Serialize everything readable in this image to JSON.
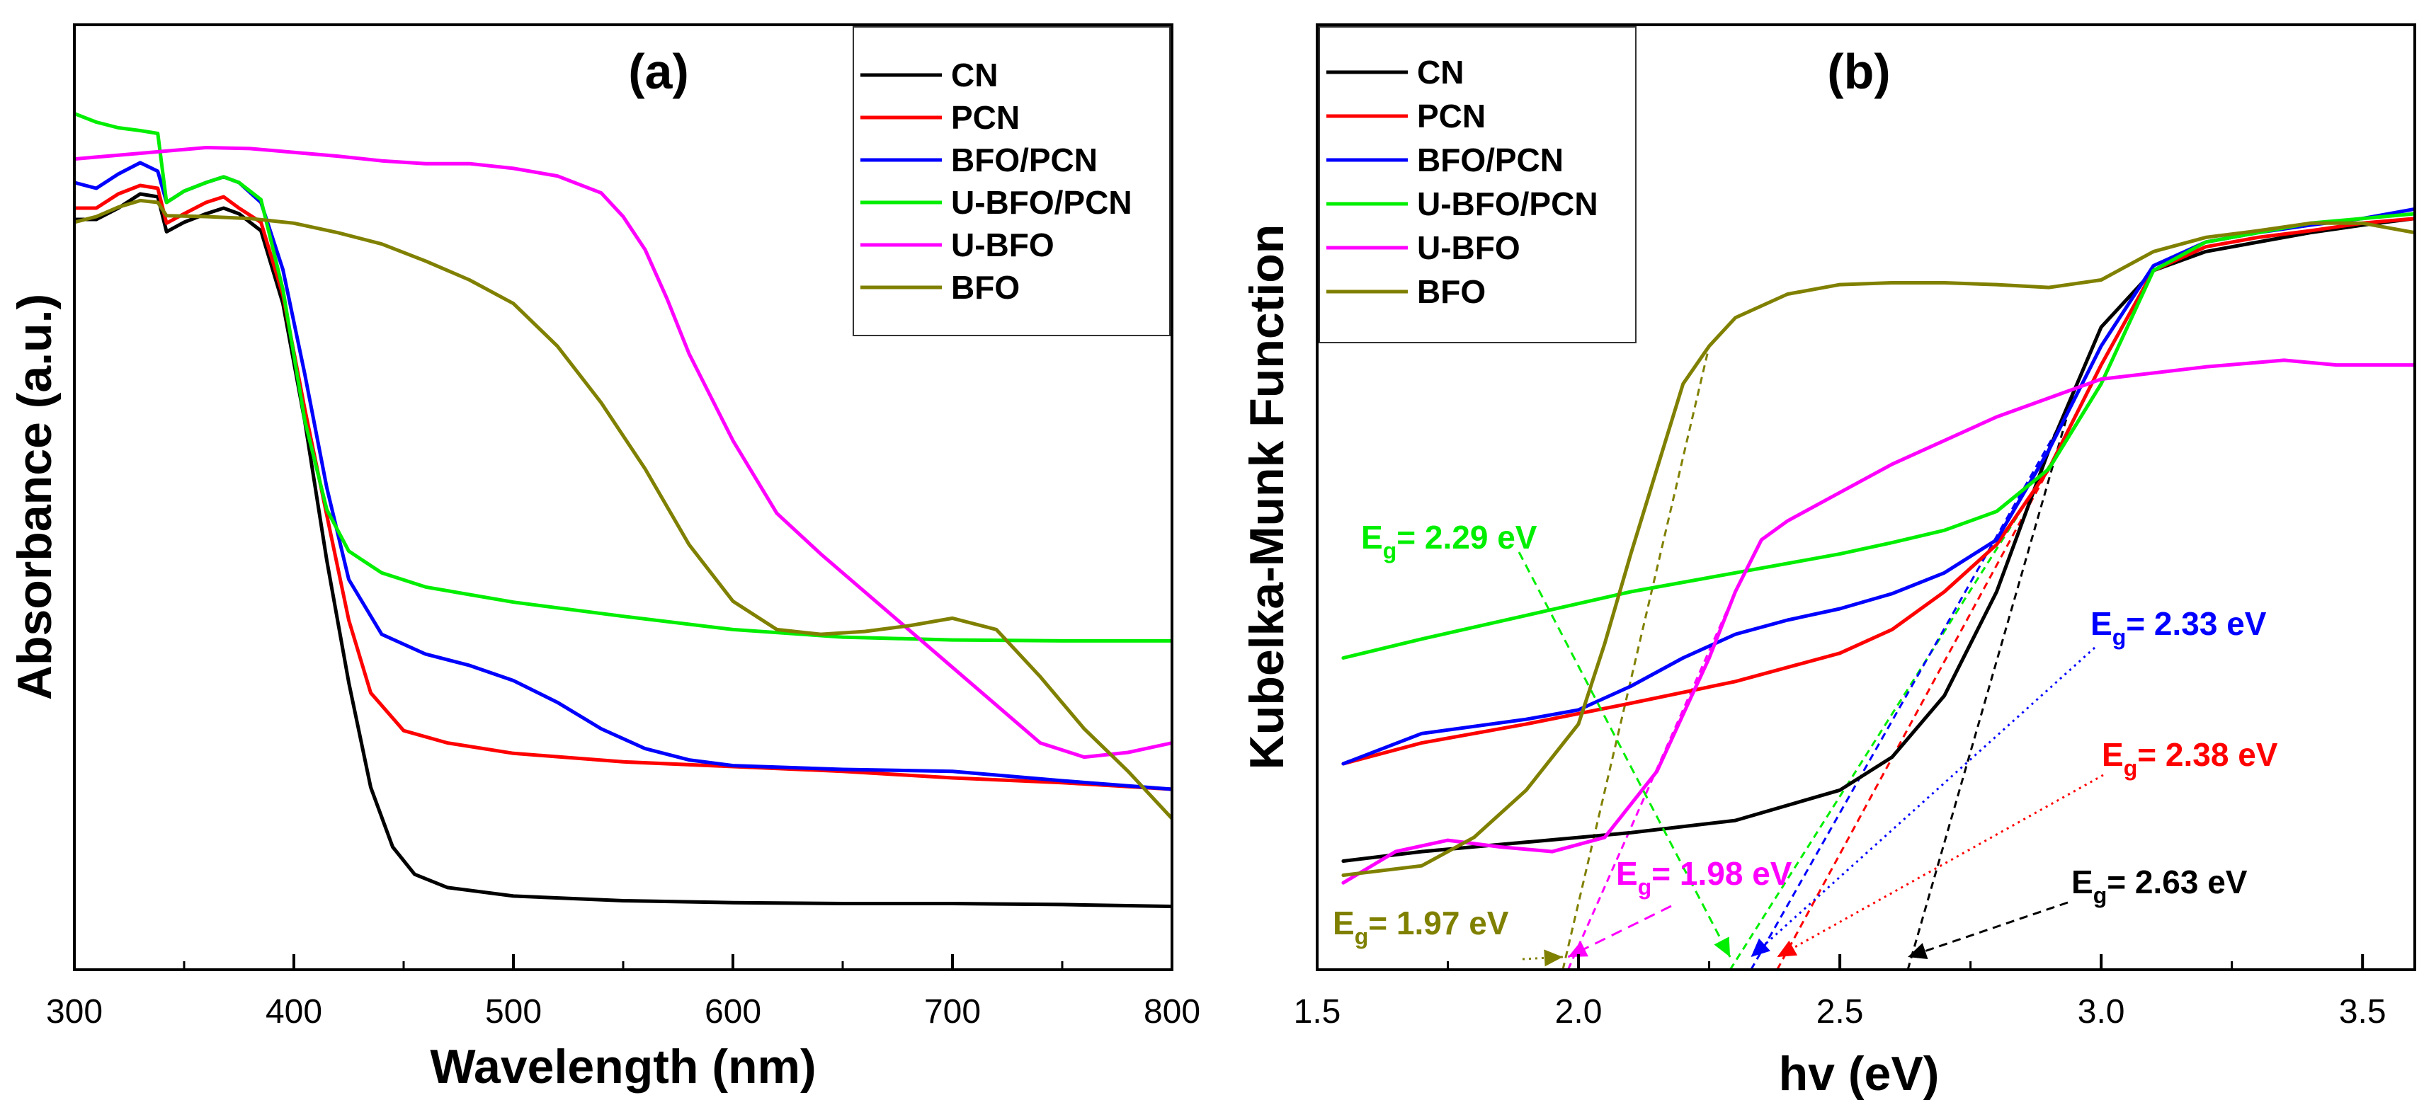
{
  "chart_data": [
    {
      "panel": "(a)",
      "type": "line",
      "xlabel": "Wavelength (nm)",
      "ylabel": "Absorbance (a.u.)",
      "xlim": [
        300,
        800
      ],
      "ylim": [
        0,
        1
      ],
      "xticks": [
        300,
        400,
        500,
        600,
        700,
        800
      ],
      "xtick_labels": [
        "300",
        "400",
        "500",
        "600",
        "700",
        "800"
      ],
      "legend_position": "top-right",
      "series": [
        {
          "name": "CN",
          "color": "#000000",
          "x": [
            300,
            310,
            320,
            330,
            338,
            342,
            350,
            360,
            368,
            375,
            385,
            395,
            405,
            415,
            425,
            435,
            445,
            455,
            470,
            500,
            550,
            600,
            650,
            700,
            750,
            800
          ],
          "y": [
            0.794,
            0.794,
            0.806,
            0.821,
            0.818,
            0.781,
            0.791,
            0.8,
            0.806,
            0.8,
            0.782,
            0.705,
            0.58,
            0.433,
            0.304,
            0.193,
            0.13,
            0.101,
            0.087,
            0.078,
            0.073,
            0.071,
            0.07,
            0.07,
            0.069,
            0.067
          ]
        },
        {
          "name": "PCN",
          "color": "#ff0000",
          "x": [
            300,
            310,
            320,
            330,
            338,
            342,
            350,
            360,
            368,
            375,
            385,
            395,
            405,
            415,
            425,
            435,
            450,
            470,
            500,
            550,
            600,
            650,
            700,
            750,
            800
          ],
          "y": [
            0.806,
            0.806,
            0.821,
            0.83,
            0.827,
            0.79,
            0.8,
            0.812,
            0.818,
            0.806,
            0.791,
            0.714,
            0.593,
            0.481,
            0.37,
            0.293,
            0.253,
            0.24,
            0.229,
            0.22,
            0.215,
            0.21,
            0.203,
            0.198,
            0.191
          ]
        },
        {
          "name": "BFO/PCN",
          "color": "#0000ff",
          "x": [
            300,
            310,
            320,
            330,
            338,
            342,
            350,
            360,
            368,
            375,
            385,
            395,
            405,
            415,
            425,
            440,
            460,
            480,
            500,
            520,
            540,
            560,
            580,
            600,
            650,
            700,
            750,
            800
          ],
          "y": [
            0.833,
            0.827,
            0.842,
            0.854,
            0.845,
            0.812,
            0.824,
            0.833,
            0.839,
            0.833,
            0.812,
            0.741,
            0.63,
            0.51,
            0.413,
            0.355,
            0.334,
            0.322,
            0.306,
            0.283,
            0.255,
            0.234,
            0.222,
            0.216,
            0.212,
            0.21,
            0.2,
            0.191
          ]
        },
        {
          "name": "U-BFO/PCN",
          "color": "#00ee00",
          "x": [
            300,
            310,
            320,
            330,
            338,
            342,
            350,
            360,
            368,
            375,
            385,
            395,
            405,
            415,
            425,
            440,
            460,
            500,
            550,
            600,
            650,
            700,
            750,
            800
          ],
          "y": [
            0.906,
            0.897,
            0.891,
            0.888,
            0.885,
            0.812,
            0.824,
            0.833,
            0.839,
            0.833,
            0.815,
            0.72,
            0.581,
            0.487,
            0.443,
            0.42,
            0.405,
            0.389,
            0.374,
            0.36,
            0.352,
            0.349,
            0.348,
            0.348
          ]
        },
        {
          "name": "U-BFO",
          "color": "#ff00ff",
          "x": [
            300,
            320,
            340,
            360,
            380,
            400,
            420,
            440,
            460,
            480,
            500,
            520,
            540,
            550,
            560,
            570,
            580,
            600,
            620,
            640,
            660,
            680,
            700,
            720,
            740,
            760,
            780,
            800
          ],
          "y": [
            0.858,
            0.862,
            0.866,
            0.87,
            0.869,
            0.865,
            0.861,
            0.856,
            0.853,
            0.853,
            0.848,
            0.84,
            0.822,
            0.797,
            0.762,
            0.71,
            0.652,
            0.56,
            0.483,
            0.44,
            0.4,
            0.36,
            0.32,
            0.28,
            0.24,
            0.225,
            0.23,
            0.24
          ]
        },
        {
          "name": "BFO",
          "color": "#808000",
          "x": [
            300,
            310,
            320,
            330,
            338,
            342,
            360,
            380,
            400,
            420,
            440,
            460,
            480,
            500,
            520,
            540,
            560,
            580,
            600,
            620,
            640,
            660,
            680,
            700,
            720,
            740,
            760,
            780,
            800
          ],
          "y": [
            0.791,
            0.797,
            0.807,
            0.814,
            0.812,
            0.798,
            0.797,
            0.795,
            0.79,
            0.78,
            0.768,
            0.75,
            0.73,
            0.705,
            0.66,
            0.6,
            0.53,
            0.45,
            0.39,
            0.36,
            0.355,
            0.358,
            0.364,
            0.372,
            0.36,
            0.31,
            0.255,
            0.21,
            0.16
          ]
        }
      ]
    },
    {
      "panel": "(b)",
      "type": "line",
      "xlabel": "hv (eV)",
      "ylabel": "Kubelka-Munk Function",
      "xlim": [
        1.5,
        3.6
      ],
      "ylim": [
        0,
        1
      ],
      "xticks": [
        1.5,
        2.0,
        2.5,
        3.0,
        3.5
      ],
      "xtick_labels": [
        "1.5",
        "2.0",
        "2.5",
        "3.0",
        "3.5"
      ],
      "legend_position": "top-left",
      "series": [
        {
          "name": "CN",
          "color": "#000000",
          "x": [
            1.55,
            1.7,
            1.9,
            2.1,
            2.3,
            2.5,
            2.6,
            2.7,
            2.8,
            2.9,
            3.0,
            3.1,
            3.2,
            3.3,
            3.4,
            3.5,
            3.6
          ],
          "y": [
            0.115,
            0.125,
            0.135,
            0.145,
            0.158,
            0.19,
            0.225,
            0.29,
            0.4,
            0.55,
            0.68,
            0.74,
            0.76,
            0.77,
            0.78,
            0.788,
            0.795
          ]
        },
        {
          "name": "PCN",
          "color": "#ff0000",
          "x": [
            1.55,
            1.7,
            1.9,
            2.1,
            2.3,
            2.5,
            2.6,
            2.7,
            2.8,
            2.9,
            3.0,
            3.1,
            3.2,
            3.3,
            3.4,
            3.5,
            3.6
          ],
          "y": [
            0.218,
            0.24,
            0.26,
            0.282,
            0.305,
            0.335,
            0.36,
            0.4,
            0.45,
            0.53,
            0.64,
            0.74,
            0.765,
            0.775,
            0.782,
            0.79,
            0.795
          ]
        },
        {
          "name": "BFO/PCN",
          "color": "#0000ff",
          "x": [
            1.55,
            1.7,
            1.9,
            2.0,
            2.1,
            2.2,
            2.3,
            2.4,
            2.5,
            2.6,
            2.7,
            2.8,
            2.9,
            3.0,
            3.1,
            3.2,
            3.3,
            3.4,
            3.5,
            3.6
          ],
          "y": [
            0.218,
            0.25,
            0.265,
            0.275,
            0.3,
            0.33,
            0.355,
            0.37,
            0.382,
            0.398,
            0.42,
            0.455,
            0.55,
            0.66,
            0.745,
            0.77,
            0.78,
            0.788,
            0.795,
            0.805
          ]
        },
        {
          "name": "U-BFO/PCN",
          "color": "#00ee00",
          "x": [
            1.55,
            1.7,
            1.9,
            2.1,
            2.3,
            2.5,
            2.6,
            2.7,
            2.8,
            2.9,
            3.0,
            3.1,
            3.2,
            3.3,
            3.4,
            3.5,
            3.6
          ],
          "y": [
            0.33,
            0.35,
            0.375,
            0.4,
            0.42,
            0.44,
            0.452,
            0.465,
            0.485,
            0.53,
            0.62,
            0.74,
            0.77,
            0.78,
            0.79,
            0.795,
            0.8
          ]
        },
        {
          "name": "U-BFO",
          "color": "#ff00ff",
          "x": [
            1.55,
            1.65,
            1.75,
            1.85,
            1.95,
            2.05,
            2.15,
            2.2,
            2.25,
            2.3,
            2.35,
            2.4,
            2.5,
            2.6,
            2.8,
            3.0,
            3.2,
            3.35,
            3.45,
            3.6
          ],
          "y": [
            0.092,
            0.125,
            0.137,
            0.13,
            0.125,
            0.14,
            0.21,
            0.27,
            0.33,
            0.4,
            0.455,
            0.475,
            0.505,
            0.535,
            0.585,
            0.625,
            0.638,
            0.645,
            0.64,
            0.64
          ]
        },
        {
          "name": "BFO",
          "color": "#808000",
          "x": [
            1.55,
            1.7,
            1.8,
            1.9,
            2.0,
            2.05,
            2.1,
            2.15,
            2.2,
            2.25,
            2.3,
            2.4,
            2.5,
            2.6,
            2.7,
            2.8,
            2.9,
            3.0,
            3.1,
            3.2,
            3.3,
            3.4,
            3.5,
            3.6
          ],
          "y": [
            0.1,
            0.11,
            0.14,
            0.19,
            0.26,
            0.345,
            0.44,
            0.53,
            0.62,
            0.66,
            0.69,
            0.715,
            0.725,
            0.727,
            0.727,
            0.725,
            0.722,
            0.73,
            0.76,
            0.775,
            0.782,
            0.79,
            0.79,
            0.78
          ]
        }
      ],
      "annotations": [
        {
          "sym": "E",
          "sub": "g",
          "text": "= 2.29 eV",
          "color": "#00ee00",
          "target_x": 2.29
        },
        {
          "sym": "E",
          "sub": "g",
          "text": "= 2.33 eV",
          "color": "#0000ff",
          "target_x": 2.33
        },
        {
          "sym": "E",
          "sub": "g",
          "text": "= 2.38 eV",
          "color": "#ff0000",
          "target_x": 2.38
        },
        {
          "sym": "E",
          "sub": "g",
          "text": "= 1.98 eV",
          "color": "#ff00ff",
          "target_x": 1.98
        },
        {
          "sym": "E",
          "sub": "g",
          "text": "= 1.97 eV",
          "color": "#808000",
          "target_x": 1.97
        },
        {
          "sym": "E",
          "sub": "g",
          "text": "= 2.63 eV",
          "color": "#000000",
          "target_x": 2.63
        }
      ],
      "tangents": [
        {
          "color": "#00ee00",
          "x": [
            2.29,
            3.0
          ]
        },
        {
          "color": "#0000ff",
          "x": [
            2.33,
            2.95
          ]
        },
        {
          "color": "#ff0000",
          "x": [
            2.38,
            2.9
          ]
        },
        {
          "color": "#000000",
          "x": [
            2.63,
            2.95
          ]
        },
        {
          "color": "#ff00ff",
          "x": [
            1.98,
            2.3
          ]
        },
        {
          "color": "#808000",
          "x": [
            1.97,
            2.25
          ]
        }
      ]
    }
  ]
}
